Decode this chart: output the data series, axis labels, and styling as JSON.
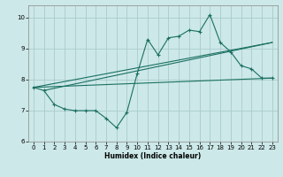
{
  "title": "",
  "xlabel": "Humidex (Indice chaleur)",
  "background_color": "#cce8e8",
  "grid_color": "#aacccc",
  "line_color": "#1a7060",
  "xlim": [
    -0.5,
    23.5
  ],
  "ylim": [
    6.0,
    10.4
  ],
  "yticks": [
    6,
    7,
    8,
    9,
    10
  ],
  "xticks": [
    0,
    1,
    2,
    3,
    4,
    5,
    6,
    7,
    8,
    9,
    10,
    11,
    12,
    13,
    14,
    15,
    16,
    17,
    18,
    19,
    20,
    21,
    22,
    23
  ],
  "main_x": [
    0,
    1,
    2,
    3,
    4,
    5,
    6,
    7,
    8,
    9,
    10,
    11,
    12,
    13,
    14,
    15,
    16,
    17,
    18,
    19,
    20,
    21,
    22,
    23
  ],
  "main_y": [
    7.75,
    7.65,
    7.2,
    7.05,
    7.0,
    7.0,
    7.0,
    6.75,
    6.45,
    6.95,
    8.2,
    9.3,
    8.8,
    9.35,
    9.4,
    9.6,
    9.55,
    10.1,
    9.2,
    8.9,
    8.45,
    8.35,
    8.05,
    8.05
  ],
  "trend1_x": [
    0,
    23
  ],
  "trend1_y": [
    7.75,
    9.2
  ],
  "trend2_x": [
    0,
    23
  ],
  "trend2_y": [
    7.75,
    8.05
  ],
  "trend3_x": [
    1,
    23
  ],
  "trend3_y": [
    7.65,
    9.2
  ]
}
